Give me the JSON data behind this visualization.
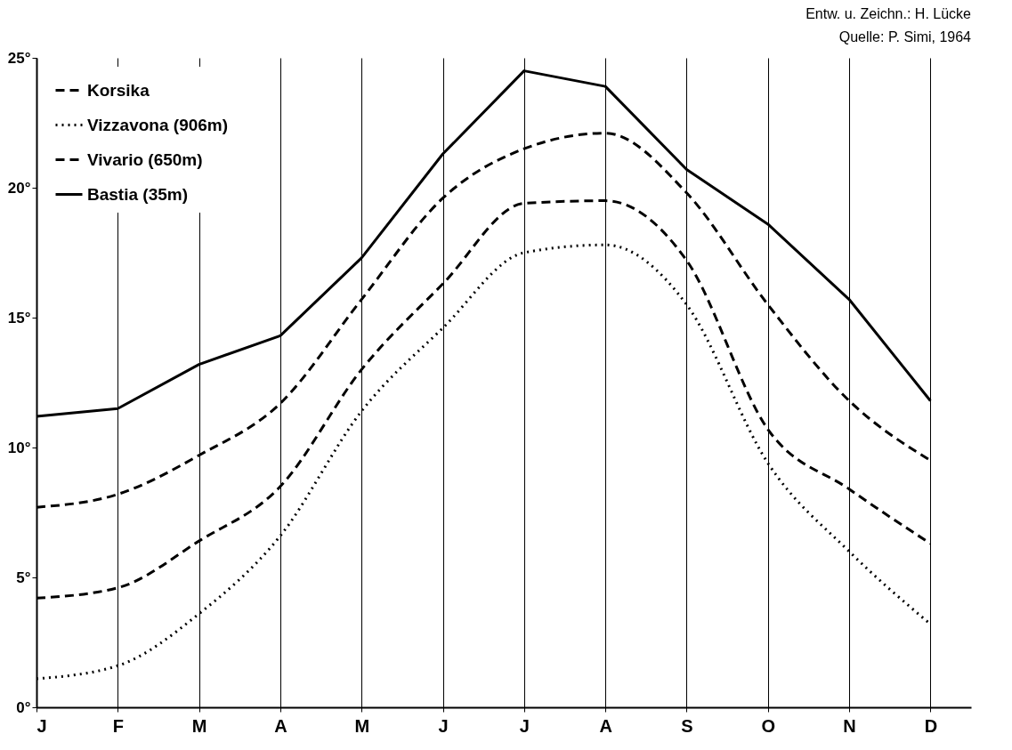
{
  "chart_data": {
    "type": "line",
    "categories": [
      "J",
      "F",
      "M",
      "A",
      "M",
      "J",
      "J",
      "A",
      "S",
      "O",
      "N",
      "D"
    ],
    "series": [
      {
        "name": "Korsika",
        "color": "#000000",
        "line_style": "dashed",
        "values": [
          7.7,
          8.2,
          9.7,
          11.7,
          15.7,
          19.6,
          21.5,
          22.1,
          19.8,
          15.5,
          11.8,
          9.5
        ]
      },
      {
        "name": "Vizzavona (906m)",
        "color": "#000000",
        "line_style": "dotted",
        "values": [
          1.1,
          1.6,
          3.6,
          6.6,
          11.4,
          14.6,
          17.5,
          17.8,
          15.5,
          9.4,
          6.0,
          3.2
        ]
      },
      {
        "name": "Vivario (650m)",
        "color": "#000000",
        "line_style": "dashed",
        "values": [
          4.2,
          4.6,
          6.4,
          8.5,
          13.0,
          16.3,
          19.4,
          19.5,
          17.2,
          10.7,
          8.4,
          6.3
        ]
      },
      {
        "name": "Bastia  (35m)",
        "color": "#000000",
        "line_style": "solid",
        "values": [
          11.2,
          11.5,
          13.2,
          14.3,
          17.3,
          21.3,
          24.5,
          23.9,
          20.7,
          18.6,
          15.7,
          11.8
        ]
      }
    ],
    "ylim": [
      0,
      25
    ],
    "yticks": [
      {
        "value": 0,
        "label": "0°"
      },
      {
        "value": 5,
        "label": "5°"
      },
      {
        "value": 10,
        "label": "10°"
      },
      {
        "value": 15,
        "label": "15°"
      },
      {
        "value": 20,
        "label": "20°"
      },
      {
        "value": 25,
        "label": "25°"
      }
    ],
    "grid": "x",
    "legend": "top left",
    "annotations": [
      "Entw. u. Zeichn.: H. Lücke",
      "Quelle: P. Simi, 1964"
    ]
  }
}
